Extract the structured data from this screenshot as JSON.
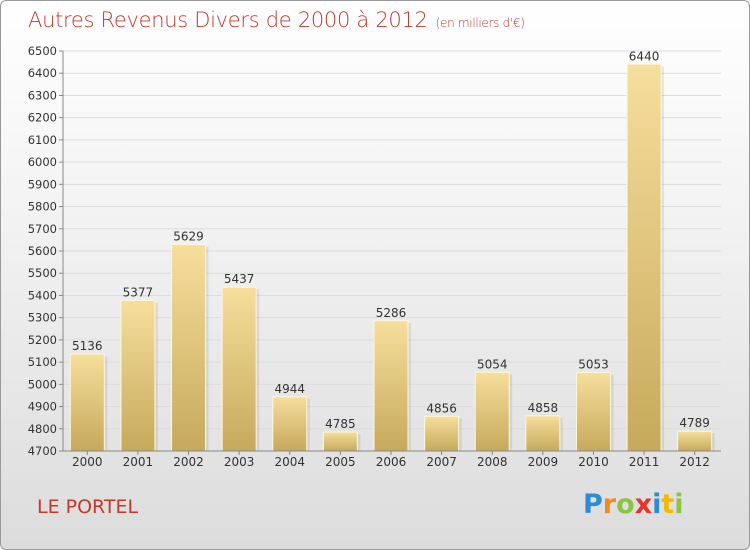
{
  "chart_data": {
    "type": "bar",
    "title": "Autres Revenus Divers de 2000 à 2012",
    "subtitle": "(en milliers d'€)",
    "categories": [
      "2000",
      "2001",
      "2002",
      "2003",
      "2004",
      "2005",
      "2006",
      "2007",
      "2008",
      "2009",
      "2010",
      "2011",
      "2012"
    ],
    "values": [
      5136,
      5377,
      5629,
      5437,
      4944,
      4785,
      5286,
      4856,
      5054,
      4858,
      5053,
      6440,
      4789
    ],
    "ylim": [
      4700,
      6500
    ],
    "ytick_step": 100,
    "grid": true,
    "bar_color": "#e8cd82"
  },
  "footer": {
    "place": "LE PORTEL",
    "logo": "Proxiti",
    "logo_colors": [
      "#2e8bd6",
      "#f08a1c",
      "#8bc53f",
      "#e6332a",
      "#2e8bd6",
      "#f5b800",
      "#8bc53f"
    ]
  },
  "colors": {
    "title": "#c0392b"
  }
}
